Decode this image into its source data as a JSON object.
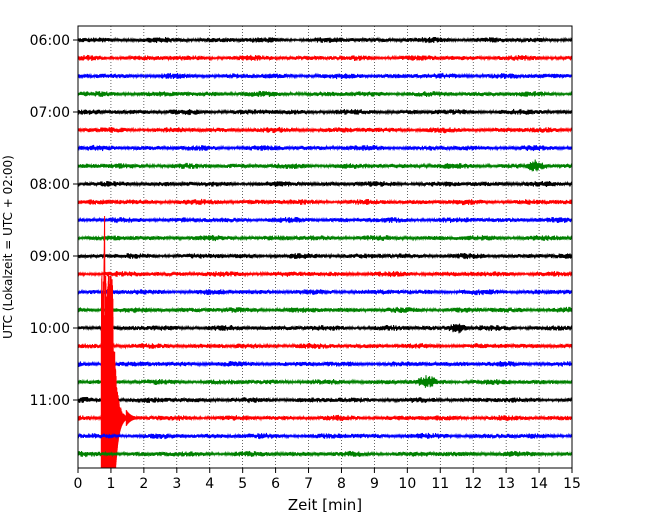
{
  "chart_data": {
    "type": "line",
    "title": "",
    "xlabel": "Zeit  [min]",
    "ylabel": "UTC (Lokalzeit = UTC + 02:00)",
    "xlim": [
      0,
      15
    ],
    "x_ticks": [
      0,
      1,
      2,
      3,
      4,
      5,
      6,
      7,
      8,
      9,
      10,
      11,
      12,
      13,
      14,
      15
    ],
    "x_tick_labels": [
      "0",
      "1",
      "2",
      "3",
      "4",
      "5",
      "6",
      "7",
      "8",
      "9",
      "10",
      "11",
      "12",
      "13",
      "14",
      "15"
    ],
    "y_tick_labels": [
      "06:00",
      "07:00",
      "08:00",
      "09:00",
      "10:00",
      "11:00"
    ],
    "trace_start_times": [
      "06:00",
      "06:15",
      "06:30",
      "06:45",
      "07:00",
      "07:15",
      "07:30",
      "07:45",
      "08:00",
      "08:15",
      "08:30",
      "08:45",
      "09:00",
      "09:15",
      "09:30",
      "09:45",
      "10:00",
      "10:15",
      "10:30",
      "10:45",
      "11:00",
      "11:15",
      "11:30",
      "11:45"
    ],
    "trace_color_cycle": [
      "#000000",
      "#ff0000",
      "#0000ff",
      "#008000"
    ],
    "grid": {
      "x": "dotted vertical lines at each minute",
      "y": false
    },
    "events": [
      {
        "trace_start": "11:15",
        "time_min": 0.8,
        "description": "large amplitude spike, exceeding the panel vertically"
      },
      {
        "trace_start": "10:00",
        "time_min": 11.5,
        "description": "small burst"
      },
      {
        "trace_start": "10:45",
        "time_min": 10.6,
        "description": "small burst"
      },
      {
        "trace_start": "07:45",
        "time_min": 13.9,
        "description": "small burst"
      }
    ]
  }
}
